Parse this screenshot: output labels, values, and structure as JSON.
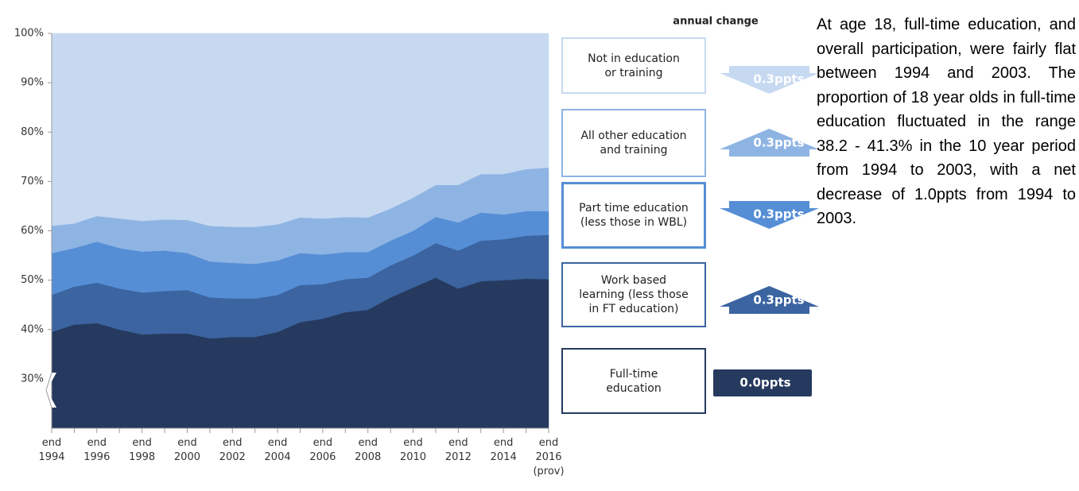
{
  "chart_data": {
    "type": "stacked-area",
    "categories": [
      "end 1994",
      null,
      "end 1996",
      null,
      "end 1998",
      null,
      "end 2000",
      null,
      "end 2002",
      null,
      "end 2004",
      null,
      "end 2006",
      null,
      "end 2008",
      null,
      "end 2010",
      null,
      "end 2012",
      null,
      "end 2014",
      null,
      "end 2016 (prov)"
    ],
    "ylim": [
      20,
      100
    ],
    "yticks": [
      {
        "value": 30,
        "label": "30%"
      },
      {
        "value": 40,
        "label": "40%"
      },
      {
        "value": 50,
        "label": "50%"
      },
      {
        "value": 60,
        "label": "60%"
      },
      {
        "value": 70,
        "label": "70%"
      },
      {
        "value": 80,
        "label": "80%"
      },
      {
        "value": 90,
        "label": "90%"
      },
      {
        "value": 100,
        "label": "100%"
      }
    ],
    "axis_break": true,
    "change_title": "annual change",
    "series": [
      {
        "name": "Full-time education",
        "color": "#253a5e",
        "annual_change": "0.0ppts",
        "change_direction": "none",
        "values": [
          39.5,
          41,
          41.3,
          40,
          39,
          39.2,
          39.2,
          38.2,
          38.5,
          38.5,
          39.5,
          41.5,
          42.2,
          43.5,
          44,
          46.5,
          48.5,
          50.5,
          48.3,
          49.8,
          50,
          50.3,
          50.2
        ]
      },
      {
        "name": "Work based learning (less those in FT education)",
        "color": "#3b64a0",
        "annual_change": "0.3ppts",
        "change_direction": "up",
        "values": [
          7.5,
          7.7,
          8.2,
          8.3,
          8.5,
          8.6,
          8.8,
          8.3,
          7.8,
          7.8,
          7.5,
          7.5,
          7,
          6.7,
          6.5,
          6.5,
          6.5,
          7,
          7.7,
          8.2,
          8.3,
          8.7,
          9
        ]
      },
      {
        "name": "Part time education (less those in WBL)",
        "color": "#558ed5",
        "annual_change": "0.3ppts",
        "change_direction": "down",
        "values": [
          8.5,
          7.8,
          8.3,
          8.2,
          8.3,
          8.2,
          7.5,
          7.3,
          7.2,
          7,
          7,
          6.5,
          6,
          5.5,
          5.2,
          5,
          5,
          5.3,
          5.7,
          5.7,
          5,
          5,
          4.8
        ]
      },
      {
        "name": "All other education and training",
        "color": "#8eb4e3",
        "annual_change": "0.3ppts",
        "change_direction": "up",
        "values": [
          5.5,
          5,
          5.2,
          6,
          6.2,
          6.3,
          6.7,
          7.2,
          7.3,
          7.5,
          7.3,
          7.2,
          7.3,
          7.1,
          7,
          6.5,
          6.7,
          6.5,
          7.6,
          7.8,
          8.2,
          8.5,
          8.8
        ]
      },
      {
        "name": "Not in education or training",
        "color": "#c6d9f1",
        "annual_change": "0.3ppts",
        "change_direction": "down",
        "values": [
          39,
          38.5,
          37,
          37.5,
          38,
          37.7,
          37.8,
          39,
          39.2,
          39.2,
          38.7,
          37.3,
          37.5,
          37.2,
          37.3,
          35.5,
          33.3,
          30.7,
          30.7,
          28.5,
          28.5,
          27.5,
          27.2
        ]
      }
    ],
    "annotation": "At age 18, full-time education, and overall participation, were fairly flat between 1994 and 2003. The proportion of 18 year olds in full-time education fluctuated in the range 38.2 - 41.3% in the 10 year period from 1994 to 2003, with a net decrease of 1.0ppts from 1994 to 2003."
  }
}
